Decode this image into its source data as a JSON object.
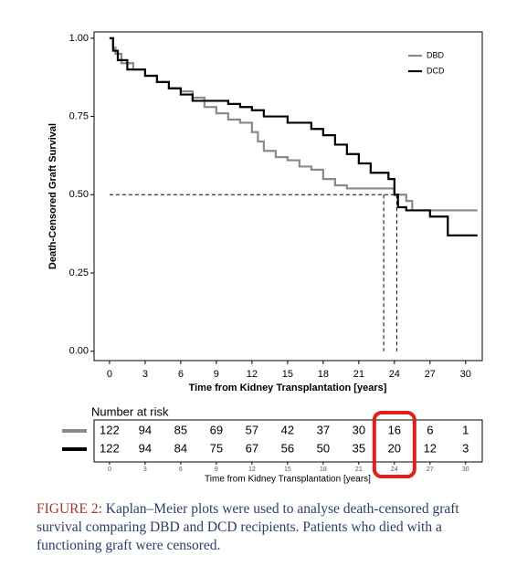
{
  "chart_data": {
    "type": "step",
    "xlabel": "Time from Kidney Transplantation [years]",
    "ylabel": "Death-Censored Graft Survival",
    "xlim": [
      -1.3,
      31.4
    ],
    "ylim": [
      -0.03,
      1.02
    ],
    "xticks": [
      0,
      3,
      6,
      9,
      12,
      15,
      18,
      21,
      24,
      27,
      30
    ],
    "yticks": [
      {
        "value": 0,
        "label": "0.00"
      },
      {
        "value": 0.25,
        "label": "0.25"
      },
      {
        "value": 0.5,
        "label": "0.50"
      },
      {
        "value": 0.75,
        "label": "0.75"
      },
      {
        "value": 1,
        "label": "1.00"
      }
    ],
    "legend": "top-right",
    "series": [
      {
        "name": "DBD",
        "color": "#8a8a8a",
        "x": [
          0,
          0.3,
          0.5,
          1,
          2,
          3,
          4,
          5,
          6,
          7,
          8,
          9,
          10,
          11,
          12,
          12.5,
          13,
          14,
          15,
          16,
          17,
          18,
          19,
          20,
          24,
          25,
          25.5,
          31
        ],
        "values": [
          1.0,
          0.97,
          0.95,
          0.92,
          0.9,
          0.88,
          0.86,
          0.84,
          0.83,
          0.81,
          0.78,
          0.76,
          0.74,
          0.73,
          0.7,
          0.67,
          0.64,
          0.62,
          0.61,
          0.59,
          0.58,
          0.55,
          0.53,
          0.52,
          0.5,
          0.48,
          0.45,
          0.45
        ]
      },
      {
        "name": "DCD",
        "color": "#000000",
        "x": [
          0,
          0.3,
          0.7,
          1.5,
          3,
          4,
          5,
          6,
          7,
          10,
          11,
          12,
          13,
          15,
          17,
          18,
          19,
          20,
          21,
          22,
          23.5,
          24,
          24.3,
          25,
          27,
          28.5,
          31
        ],
        "values": [
          1.0,
          0.96,
          0.93,
          0.9,
          0.88,
          0.86,
          0.84,
          0.82,
          0.8,
          0.79,
          0.78,
          0.77,
          0.75,
          0.73,
          0.71,
          0.69,
          0.66,
          0.63,
          0.6,
          0.57,
          0.55,
          0.5,
          0.46,
          0.45,
          0.43,
          0.37,
          0.37
        ]
      }
    ],
    "reference_lines": {
      "y": 0.5,
      "x": [
        23.1,
        24.2
      ]
    },
    "risk_table": {
      "title": "Number at risk",
      "times": [
        0,
        3,
        6,
        9,
        12,
        15,
        18,
        21,
        24,
        27,
        30
      ],
      "rows": [
        {
          "color": "#8a8a8a",
          "values": [
            122,
            94,
            85,
            69,
            57,
            42,
            37,
            30,
            16,
            6,
            1
          ]
        },
        {
          "color": "#000000",
          "values": [
            122,
            94,
            84,
            75,
            67,
            56,
            50,
            35,
            20,
            12,
            3
          ]
        }
      ],
      "xlabel": "Time from Kidney Transplantation [years]",
      "highlight": {
        "x": 24,
        "color": "#e0201b"
      }
    }
  },
  "caption": {
    "label": "FIGURE 2:",
    "text": " Kaplan–Meier plots were used to analyse death-censored graft survival comparing DBD and DCD recipients. Patients who died with a functioning graft were censored."
  }
}
